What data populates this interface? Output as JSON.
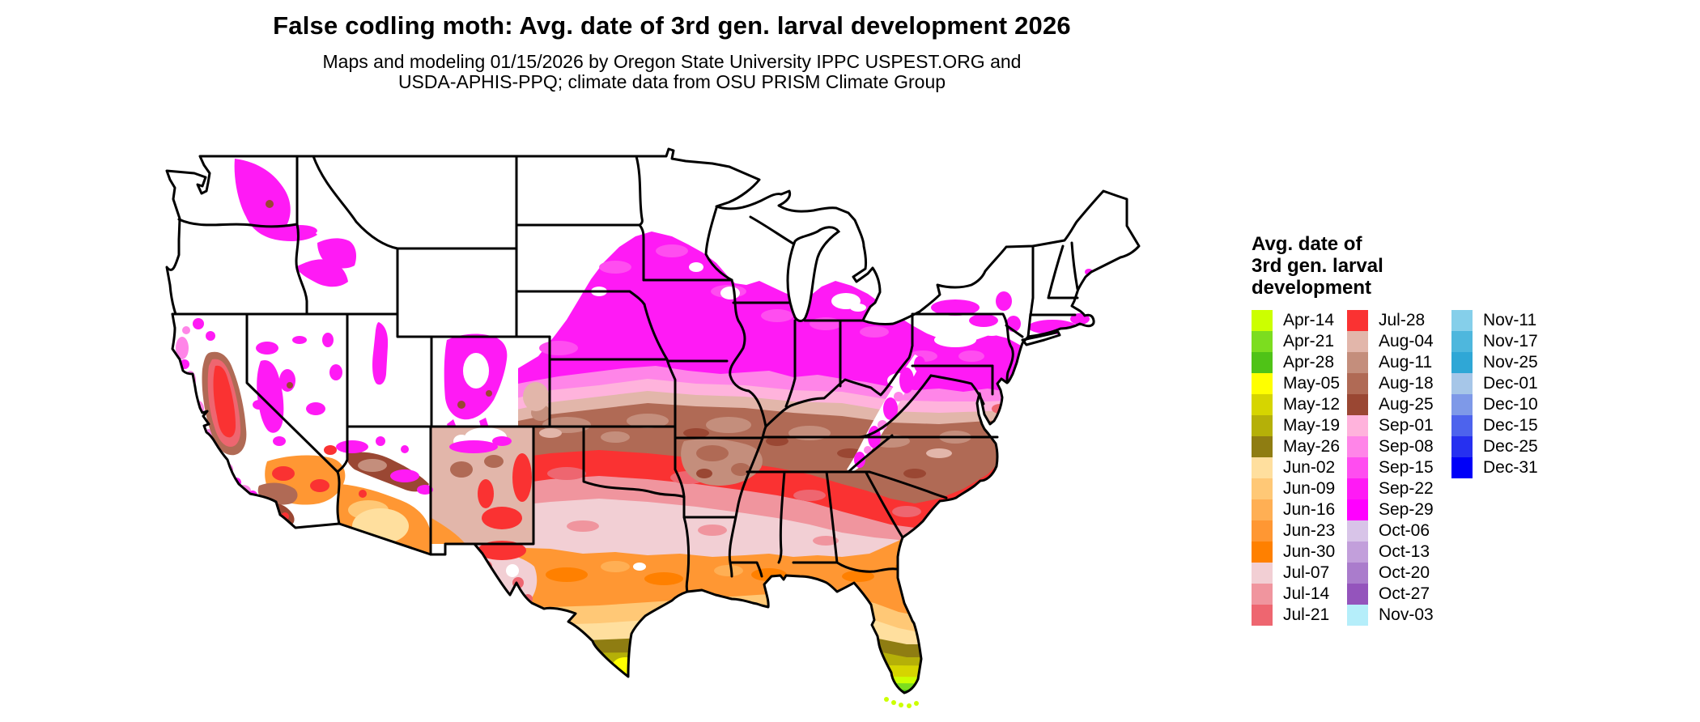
{
  "header": {
    "title": "False codling moth: Avg. date of 3rd gen. larval development 2026",
    "subtitle_line1": "Maps and modeling 01/15/2026 by Oregon State University IPPC USPEST.ORG and",
    "subtitle_line2": "USDA-APHIS-PPQ; climate data from OSU PRISM Climate Group"
  },
  "legend": {
    "title_lines": [
      "Avg. date of",
      "3rd gen. larval",
      "development"
    ],
    "columns": [
      [
        {
          "label": "Apr-14",
          "color": "#CCFF00"
        },
        {
          "label": "Apr-21",
          "color": "#7CDD1F"
        },
        {
          "label": "Apr-28",
          "color": "#4FC317"
        },
        {
          "label": "May-05",
          "color": "#FFFF00"
        },
        {
          "label": "May-12",
          "color": "#D6D500"
        },
        {
          "label": "May-19",
          "color": "#B5B008"
        },
        {
          "label": "May-26",
          "color": "#8F7D12"
        },
        {
          "label": "Jun-02",
          "color": "#FFDF9E"
        },
        {
          "label": "Jun-09",
          "color": "#FFC876"
        },
        {
          "label": "Jun-16",
          "color": "#FFAF54"
        },
        {
          "label": "Jun-23",
          "color": "#FF9733"
        },
        {
          "label": "Jun-30",
          "color": "#FF8000"
        },
        {
          "label": "Jul-07",
          "color": "#F2CFD4"
        },
        {
          "label": "Jul-14",
          "color": "#F0959E"
        },
        {
          "label": "Jul-21",
          "color": "#EE6670"
        }
      ],
      [
        {
          "label": "Jul-28",
          "color": "#FA3232"
        },
        {
          "label": "Aug-04",
          "color": "#E2B6AA"
        },
        {
          "label": "Aug-11",
          "color": "#C48E7C"
        },
        {
          "label": "Aug-18",
          "color": "#B06A55"
        },
        {
          "label": "Aug-25",
          "color": "#9A4733"
        },
        {
          "label": "Sep-01",
          "color": "#FFB3DC"
        },
        {
          "label": "Sep-08",
          "color": "#FF85E8"
        },
        {
          "label": "Sep-15",
          "color": "#FF4DF0"
        },
        {
          "label": "Sep-22",
          "color": "#FF1AF5"
        },
        {
          "label": "Sep-29",
          "color": "#FF00FF"
        },
        {
          "label": "Oct-06",
          "color": "#D8C4E8"
        },
        {
          "label": "Oct-13",
          "color": "#C29FDB"
        },
        {
          "label": "Oct-20",
          "color": "#AA7CCC"
        },
        {
          "label": "Oct-27",
          "color": "#9454BC"
        },
        {
          "label": "Nov-03",
          "color": "#B5EEFA"
        }
      ],
      [
        {
          "label": "Nov-11",
          "color": "#85CFEA"
        },
        {
          "label": "Nov-17",
          "color": "#4EB7DD"
        },
        {
          "label": "Nov-25",
          "color": "#2FA7D6"
        },
        {
          "label": "Dec-01",
          "color": "#A6C6E8"
        },
        {
          "label": "Dec-10",
          "color": "#7E99E8"
        },
        {
          "label": "Dec-15",
          "color": "#4D63ED"
        },
        {
          "label": "Dec-25",
          "color": "#2630F0"
        },
        {
          "label": "Dec-31",
          "color": "#0000F8"
        }
      ]
    ]
  },
  "map": {
    "region": "Contiguous United States",
    "no_data_color": "#FFFFFF",
    "border_color": "#000000"
  }
}
